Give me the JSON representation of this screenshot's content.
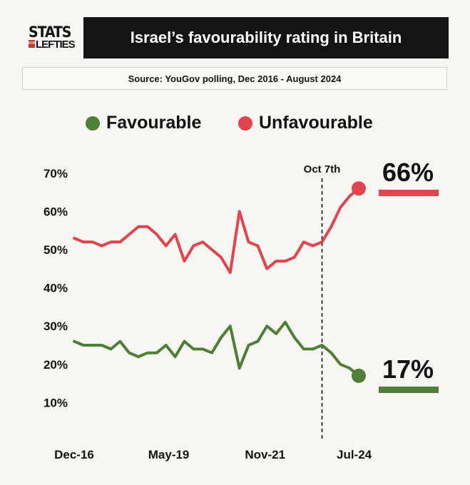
{
  "logo": {
    "line1": "STATS",
    "for": "FOR",
    "line2": "LEFTIES"
  },
  "title": "Israel’s favourability rating in Britain",
  "source": "Source: YouGov polling, Dec 2016 - August 2024",
  "chart_data": {
    "type": "line",
    "title": "Israel’s favourability rating in Britain",
    "subtitle": "Source: YouGov polling, Dec 2016 - August 2024",
    "xlabel": "",
    "ylabel": "",
    "x_tick_labels": [
      "Dec-16",
      "May-19",
      "Nov-21",
      "Jul-24"
    ],
    "y_tick_labels": [
      "10%",
      "20%",
      "30%",
      "40%",
      "50%",
      "60%",
      "70%"
    ],
    "ylim": [
      0,
      70
    ],
    "grid": false,
    "legend_position": "top",
    "series": [
      {
        "name": "Favourable",
        "color": "#4f7f36",
        "values": [
          26,
          25,
          25,
          25,
          24,
          26,
          23,
          22,
          23,
          23,
          25,
          22,
          26,
          24,
          24,
          23,
          27,
          30,
          19,
          25,
          26,
          30,
          28,
          31,
          27,
          24,
          24,
          25,
          23,
          20,
          19,
          17
        ],
        "end_label": "17%"
      },
      {
        "name": "Unfavourable",
        "color": "#e0444c",
        "values": [
          53,
          52,
          52,
          51,
          52,
          52,
          54,
          56,
          56,
          54,
          51,
          54,
          47,
          51,
          52,
          50,
          48,
          44,
          60,
          52,
          51,
          45,
          47,
          47,
          48,
          52,
          51,
          52,
          56,
          61,
          64,
          66
        ],
        "end_label": "66%"
      }
    ],
    "annotations": [
      {
        "label": "Oct 7th",
        "style": "dashed vertical line",
        "x_index": 27
      }
    ]
  }
}
